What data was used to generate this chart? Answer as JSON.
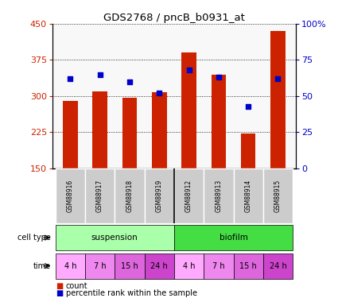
{
  "title": "GDS2768 / pncB_b0931_at",
  "samples": [
    "GSM88916",
    "GSM88917",
    "GSM88918",
    "GSM88919",
    "GSM88912",
    "GSM88913",
    "GSM88914",
    "GSM88915"
  ],
  "counts": [
    290,
    310,
    297,
    308,
    390,
    345,
    222,
    435
  ],
  "percentile_ranks": [
    62,
    65,
    60,
    52,
    68,
    63,
    43,
    62
  ],
  "ylim_left": [
    150,
    450
  ],
  "ylim_right": [
    0,
    100
  ],
  "yticks_left": [
    150,
    225,
    300,
    375,
    450
  ],
  "yticks_right": [
    0,
    25,
    50,
    75,
    100
  ],
  "ytick_labels_right": [
    "0",
    "25",
    "50",
    "75",
    "100%"
  ],
  "bar_color": "#cc2200",
  "dot_color": "#0000cc",
  "cell_type_label": "cell type",
  "time_label": "time",
  "cell_types": [
    {
      "label": "suspension",
      "span": [
        0,
        4
      ],
      "color": "#aaffaa"
    },
    {
      "label": "biofilm",
      "span": [
        4,
        8
      ],
      "color": "#44dd44"
    }
  ],
  "times": [
    "4 h",
    "7 h",
    "15 h",
    "24 h",
    "4 h",
    "7 h",
    "15 h",
    "24 h"
  ],
  "time_color": "#dd88dd",
  "legend_count_label": "count",
  "legend_pct_label": "percentile rank within the sample",
  "bg_color": "#ffffff",
  "gsm_box_color": "#cccccc",
  "gsm_sep_color": "#ffffff"
}
